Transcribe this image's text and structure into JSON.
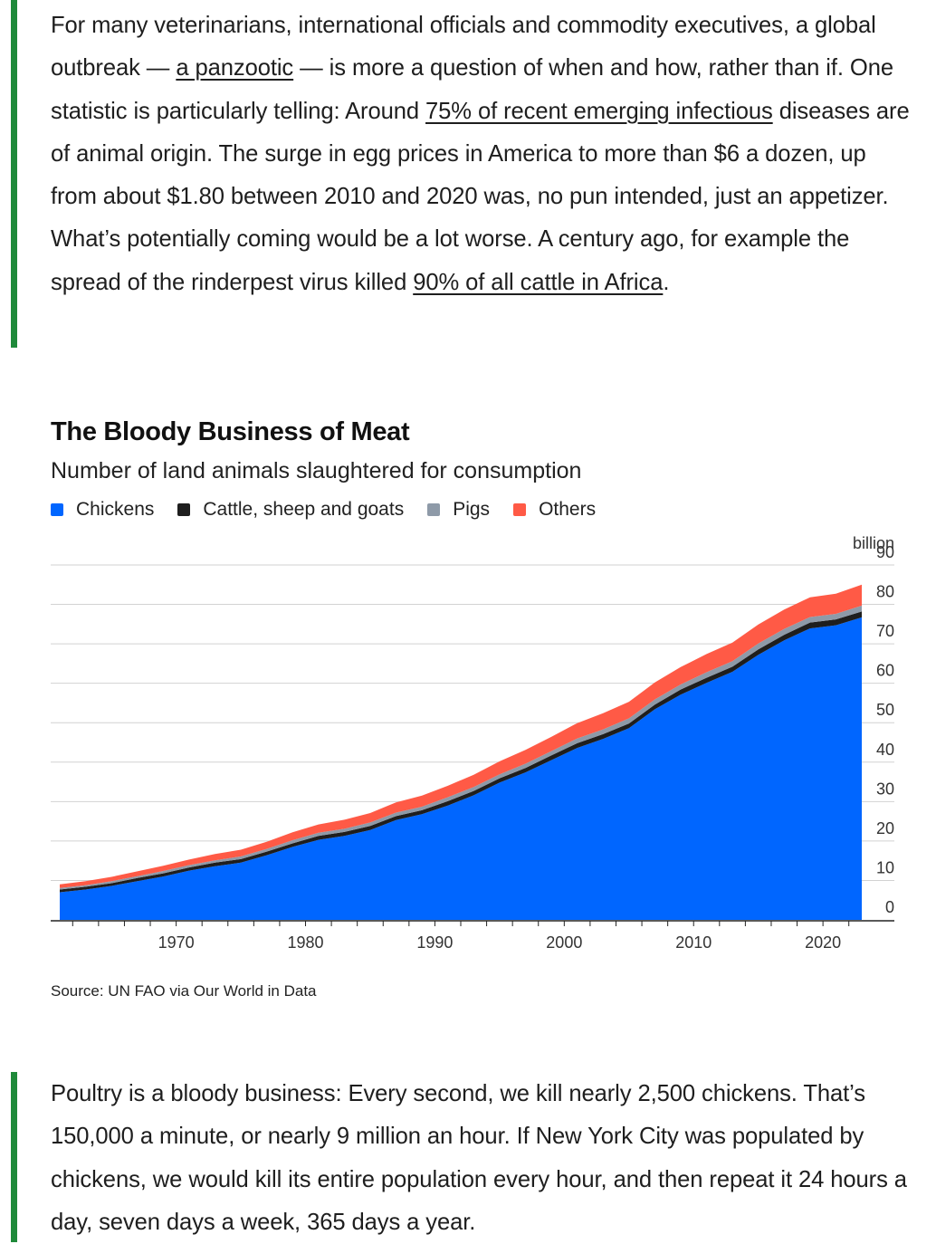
{
  "article": {
    "p1": {
      "t1": "For many veterinarians, international officials and commodity executives, a global outbreak — ",
      "link1": "a panzootic",
      "t2": " — is more a question of when and how, rather than if. One statistic is particularly telling: Around ",
      "link2": "75% of recent emerging infectious",
      "t3": " diseases are of animal origin. The surge in egg prices in America to more than $6 a dozen, up from about $1.80 between 2010 and 2020 was, no pun intended, just an appetizer. What’s potentially coming would be a lot worse. A century ago, for example the spread of the rinderpest virus killed ",
      "link3": "90% of all cattle in Africa",
      "t4": "."
    },
    "p2": "Poultry is a bloody business: Every second, we kill nearly 2,500 chickens. That’s 150,000 a minute, or nearly 9 million an hour. If New York City was populated by chickens, we would kill its entire population every hour, and then repeat it 24 hours a day, seven days a week, 365 days a year.",
    "quote_bar_color": "#1f8a3a"
  },
  "chart_data": {
    "type": "area",
    "stacked": true,
    "title": "The Bloody Business of Meat",
    "subtitle": "Number of land animals slaughtered for consumption",
    "unit_label": "billion",
    "source": "Source: UN FAO via Our World in Data",
    "x_ticks": [
      1970,
      1980,
      1990,
      2000,
      2010,
      2020
    ],
    "y_ticks": [
      0,
      10,
      20,
      30,
      40,
      50,
      60,
      70,
      80,
      90
    ],
    "ylim": [
      0,
      90
    ],
    "xlim": [
      1961,
      2023
    ],
    "gridlines": true,
    "y_axis_side": "right",
    "legend_position": "top-left",
    "x": [
      1961,
      1963,
      1965,
      1967,
      1969,
      1971,
      1973,
      1975,
      1977,
      1979,
      1981,
      1983,
      1985,
      1987,
      1989,
      1991,
      1993,
      1995,
      1997,
      1999,
      2001,
      2003,
      2005,
      2007,
      2009,
      2011,
      2013,
      2015,
      2017,
      2019,
      2021,
      2023
    ],
    "series": [
      {
        "name": "Chickens",
        "color": "#0066ff",
        "values": [
          7,
          7.7,
          8.6,
          9.8,
          11,
          12.5,
          13.6,
          14.5,
          16.4,
          18.5,
          20.3,
          21.3,
          22.8,
          25.3,
          26.8,
          29,
          31.6,
          34.8,
          37.4,
          40.5,
          43.6,
          45.9,
          48.6,
          53.4,
          57.1,
          60.1,
          62.9,
          67.2,
          70.9,
          73.9,
          74.7,
          76.7
        ]
      },
      {
        "name": "Cattle, sheep and goats",
        "color": "#1e1e1e",
        "values": [
          0.7,
          0.7,
          0.7,
          0.8,
          0.8,
          0.8,
          0.9,
          0.9,
          0.9,
          0.9,
          1,
          1,
          1,
          1,
          1,
          1.1,
          1.1,
          1.1,
          1.1,
          1.2,
          1.2,
          1.2,
          1.2,
          1.2,
          1.3,
          1.3,
          1.3,
          1.4,
          1.4,
          1.5,
          1.5,
          1.5
        ]
      },
      {
        "name": "Pigs",
        "color": "#8e9aa8",
        "values": [
          0.4,
          0.4,
          0.5,
          0.5,
          0.6,
          0.6,
          0.6,
          0.7,
          0.7,
          0.8,
          0.8,
          0.8,
          0.9,
          0.9,
          0.9,
          1,
          1,
          1,
          1.1,
          1.1,
          1.2,
          1.2,
          1.3,
          1.3,
          1.3,
          1.4,
          1.4,
          1.5,
          1.5,
          1.4,
          1.4,
          1.5
        ]
      },
      {
        "name": "Others",
        "color": "#ff5a46",
        "values": [
          0.9,
          1,
          1.1,
          1.2,
          1.3,
          1.4,
          1.6,
          1.7,
          1.8,
          2,
          2.1,
          2.3,
          2.4,
          2.6,
          2.8,
          2.9,
          3.1,
          3.3,
          3.5,
          3.6,
          3.9,
          4.1,
          4.2,
          4.3,
          4.4,
          4.6,
          4.7,
          4.8,
          4.9,
          5,
          5.1,
          5.3
        ]
      }
    ]
  }
}
